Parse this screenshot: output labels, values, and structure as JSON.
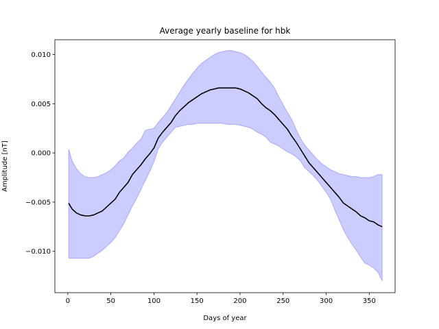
{
  "chart_data": {
    "type": "area",
    "title": "Average yearly baseline for hbk",
    "xlabel": "Days of year",
    "ylabel": "Amplitude [nT]",
    "xlim": [
      -15,
      380
    ],
    "ylim": [
      -0.0142,
      0.0115
    ],
    "xticks": [
      {
        "value": 0,
        "label": "0"
      },
      {
        "value": 50,
        "label": "50"
      },
      {
        "value": 100,
        "label": "100"
      },
      {
        "value": 150,
        "label": "150"
      },
      {
        "value": 200,
        "label": "200"
      },
      {
        "value": 250,
        "label": "250"
      },
      {
        "value": 300,
        "label": "300"
      },
      {
        "value": 350,
        "label": "350"
      }
    ],
    "yticks": [
      {
        "value": -0.01,
        "label": "−0.010"
      },
      {
        "value": -0.005,
        "label": "−0.005"
      },
      {
        "value": 0.0,
        "label": "0.000"
      },
      {
        "value": 0.005,
        "label": "0.005"
      },
      {
        "value": 0.01,
        "label": "0.010"
      }
    ],
    "grid": false,
    "series": [
      {
        "role": "mean",
        "color": "#000000",
        "x": [
          1,
          5,
          10,
          15,
          20,
          25,
          30,
          35,
          40,
          45,
          50,
          55,
          60,
          65,
          70,
          75,
          80,
          85,
          90,
          95,
          100,
          105,
          110,
          115,
          120,
          125,
          130,
          135,
          140,
          145,
          150,
          155,
          160,
          165,
          170,
          175,
          180,
          185,
          190,
          195,
          200,
          205,
          210,
          215,
          220,
          225,
          230,
          235,
          240,
          245,
          250,
          255,
          260,
          265,
          270,
          275,
          280,
          285,
          290,
          295,
          300,
          305,
          310,
          315,
          320,
          325,
          330,
          335,
          340,
          345,
          350,
          355,
          360,
          365
        ],
        "y": [
          -0.0051,
          -0.0057,
          -0.0061,
          -0.0063,
          -0.0064,
          -0.0064,
          -0.0063,
          -0.0061,
          -0.0059,
          -0.0055,
          -0.0051,
          -0.0047,
          -0.004,
          -0.0035,
          -0.003,
          -0.0022,
          -0.0017,
          -0.0012,
          -0.0006,
          -0.0001,
          0.0005,
          0.0015,
          0.0021,
          0.0026,
          0.0031,
          0.0038,
          0.0043,
          0.0047,
          0.0051,
          0.0054,
          0.0057,
          0.006,
          0.0062,
          0.0064,
          0.0065,
          0.0066,
          0.0066,
          0.0066,
          0.0066,
          0.0066,
          0.0065,
          0.0063,
          0.0061,
          0.0058,
          0.0055,
          0.005,
          0.0046,
          0.0043,
          0.0039,
          0.0034,
          0.0029,
          0.0024,
          0.0017,
          0.0011,
          0.0004,
          -0.0003,
          -0.001,
          -0.0015,
          -0.002,
          -0.0025,
          -0.003,
          -0.0035,
          -0.004,
          -0.0045,
          -0.0051,
          -0.0054,
          -0.0057,
          -0.006,
          -0.0064,
          -0.0066,
          -0.0069,
          -0.007,
          -0.0073,
          -0.0075
        ]
      },
      {
        "role": "band",
        "color": "#0000ff",
        "x": [
          1,
          5,
          10,
          15,
          20,
          25,
          30,
          35,
          40,
          45,
          50,
          55,
          60,
          65,
          70,
          75,
          80,
          85,
          90,
          95,
          100,
          105,
          110,
          115,
          120,
          125,
          130,
          135,
          140,
          145,
          150,
          155,
          160,
          165,
          170,
          175,
          180,
          185,
          190,
          195,
          200,
          205,
          210,
          215,
          220,
          225,
          230,
          235,
          240,
          245,
          250,
          255,
          260,
          265,
          270,
          275,
          280,
          285,
          290,
          295,
          300,
          305,
          310,
          315,
          320,
          325,
          330,
          335,
          340,
          345,
          350,
          355,
          360,
          365
        ],
        "lower": [
          -0.0107,
          -0.0107,
          -0.0107,
          -0.0107,
          -0.0107,
          -0.0107,
          -0.0105,
          -0.0102,
          -0.0099,
          -0.0095,
          -0.0091,
          -0.0086,
          -0.0079,
          -0.0072,
          -0.0063,
          -0.0054,
          -0.0046,
          -0.0037,
          -0.0028,
          -0.0019,
          -0.0009,
          0.0004,
          0.0011,
          0.0016,
          0.0021,
          0.0026,
          0.0027,
          0.0028,
          0.0029,
          0.0029,
          0.003,
          0.003,
          0.003,
          0.003,
          0.003,
          0.003,
          0.003,
          0.0029,
          0.0029,
          0.0029,
          0.0028,
          0.0027,
          0.0026,
          0.0024,
          0.0021,
          0.0019,
          0.0016,
          0.0011,
          0.0009,
          0.0007,
          0.0004,
          0.0001,
          -0.0001,
          -0.0004,
          -0.0008,
          -0.0015,
          -0.0019,
          -0.0023,
          -0.0028,
          -0.0034,
          -0.004,
          -0.0047,
          -0.0058,
          -0.0068,
          -0.0078,
          -0.0086,
          -0.0093,
          -0.0099,
          -0.0106,
          -0.0112,
          -0.0114,
          -0.0117,
          -0.0121,
          -0.013
        ]
      },
      {
        "role": "band-upper",
        "x": [
          1,
          5,
          10,
          15,
          20,
          25,
          30,
          35,
          40,
          45,
          50,
          55,
          60,
          65,
          70,
          75,
          80,
          85,
          90,
          95,
          100,
          105,
          110,
          115,
          120,
          125,
          130,
          135,
          140,
          145,
          150,
          155,
          160,
          165,
          170,
          175,
          180,
          185,
          190,
          195,
          200,
          205,
          210,
          215,
          220,
          225,
          230,
          235,
          240,
          245,
          250,
          255,
          260,
          265,
          270,
          275,
          280,
          285,
          290,
          295,
          300,
          305,
          310,
          315,
          320,
          325,
          330,
          335,
          340,
          345,
          350,
          355,
          360,
          365
        ],
        "upper": [
          0.0004,
          -0.0008,
          -0.0016,
          -0.0021,
          -0.0024,
          -0.0025,
          -0.0025,
          -0.0024,
          -0.0022,
          -0.002,
          -0.0017,
          -0.0013,
          -0.0008,
          -0.0005,
          0.0001,
          0.0005,
          0.001,
          0.0014,
          0.0023,
          0.0024,
          0.0025,
          0.0031,
          0.0036,
          0.0041,
          0.0048,
          0.0055,
          0.0062,
          0.0069,
          0.0075,
          0.0081,
          0.0086,
          0.0091,
          0.0094,
          0.0097,
          0.01,
          0.0102,
          0.0103,
          0.0104,
          0.0104,
          0.0103,
          0.0102,
          0.01,
          0.0097,
          0.0093,
          0.0088,
          0.0082,
          0.0077,
          0.0072,
          0.0066,
          0.0057,
          0.0049,
          0.0041,
          0.0034,
          0.0024,
          0.0015,
          0.0008,
          0.0003,
          -0.0002,
          -0.0007,
          -0.0011,
          -0.0014,
          -0.0017,
          -0.0019,
          -0.0021,
          -0.0022,
          -0.0023,
          -0.0024,
          -0.0024,
          -0.0025,
          -0.0025,
          -0.0025,
          -0.0024,
          -0.0022,
          -0.0022
        ]
      }
    ]
  }
}
